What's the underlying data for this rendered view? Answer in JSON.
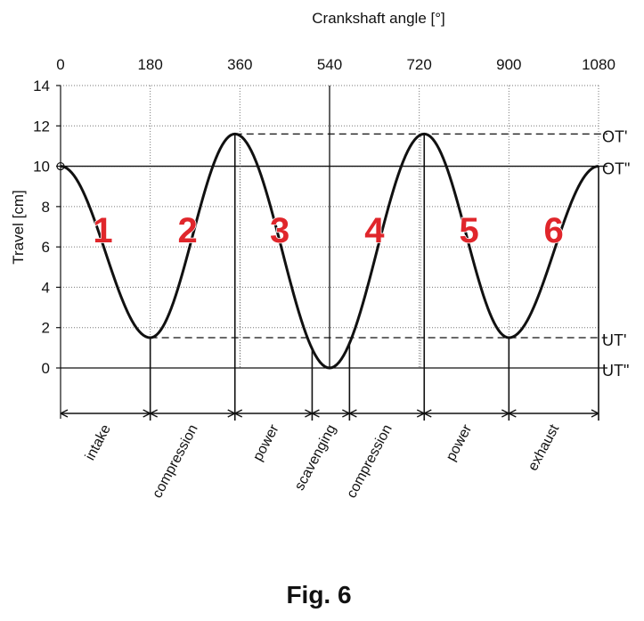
{
  "chart_data": {
    "type": "line",
    "title": "",
    "xlabel": "Crankshaft angle [°]",
    "ylabel": "Travel [cm]",
    "xlim": [
      0,
      1080
    ],
    "ylim": [
      0,
      14
    ],
    "x_ticks": [
      0,
      180,
      360,
      540,
      720,
      900,
      1080
    ],
    "y_ticks": [
      0,
      2,
      4,
      6,
      8,
      10,
      12,
      14
    ],
    "grid": true,
    "series": [
      {
        "x": [
          0,
          180,
          350,
          540,
          730,
          900,
          1080
        ],
        "y": [
          10,
          1.5,
          11.6,
          0,
          11.6,
          1.5,
          10
        ]
      }
    ],
    "reference_lines": [
      {
        "label": "OT'",
        "y": 11.6,
        "style": "dashed"
      },
      {
        "label": "OT\"",
        "y": 10,
        "style": "solid"
      },
      {
        "label": "UT'",
        "y": 1.5,
        "style": "dashed"
      },
      {
        "label": "UT\"",
        "y": 0,
        "style": "solid"
      }
    ],
    "sections": [
      {
        "number": "1",
        "x": 85
      },
      {
        "number": "2",
        "x": 255
      },
      {
        "number": "3",
        "x": 440
      },
      {
        "number": "4",
        "x": 630
      },
      {
        "number": "5",
        "x": 820
      },
      {
        "number": "6",
        "x": 990
      }
    ],
    "phase_boundaries": [
      0,
      180,
      350,
      505,
      580,
      730,
      900,
      1080
    ],
    "phases": [
      {
        "label": "intake",
        "x_start": 0,
        "x_end": 180
      },
      {
        "label": "compression",
        "x_start": 180,
        "x_end": 350
      },
      {
        "label": "power",
        "x_start": 350,
        "x_end": 505
      },
      {
        "label": "scavenging",
        "x_start": 505,
        "x_end": 580
      },
      {
        "label": "compression",
        "x_start": 580,
        "x_end": 730
      },
      {
        "label": "power",
        "x_start": 730,
        "x_end": 900
      },
      {
        "label": "exhaust",
        "x_start": 900,
        "x_end": 1080
      }
    ]
  },
  "caption": "Fig. 6"
}
